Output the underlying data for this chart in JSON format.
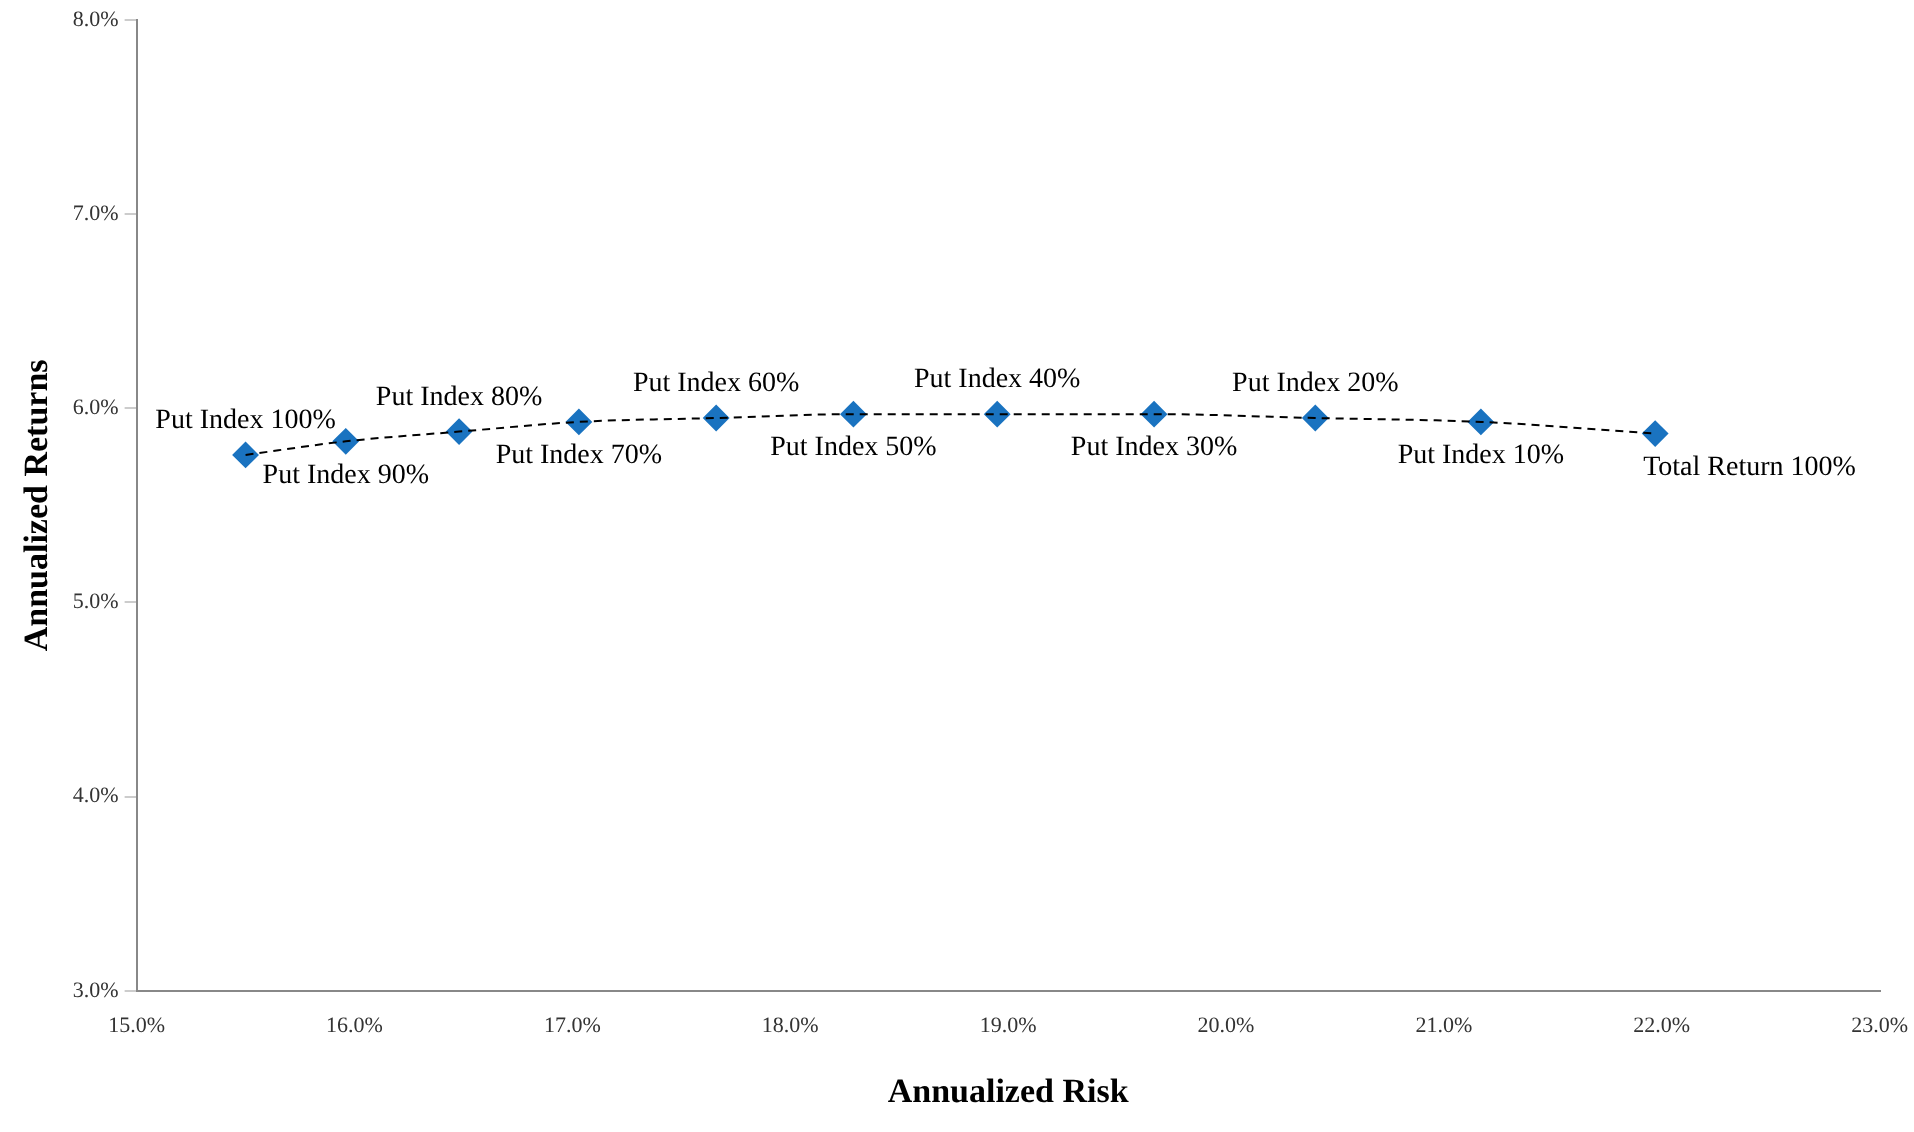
{
  "chart_data": {
    "type": "scatter",
    "xlabel": "Annualized Risk",
    "ylabel": "Annualized Returns",
    "x": [
      15.5,
      15.96,
      16.48,
      17.03,
      17.66,
      18.29,
      18.95,
      19.67,
      20.41,
      21.17,
      21.97
    ],
    "series": [
      {
        "type": "line",
        "color": "#000000",
        "line_style": "dashed",
        "marker": "none",
        "values": [
          5.76,
          5.83,
          5.88,
          5.93,
          5.95,
          5.97,
          5.97,
          5.97,
          5.95,
          5.93,
          5.87
        ]
      },
      {
        "type": "scatter",
        "color": "#1a73c0",
        "marker": "diamond",
        "values": [
          5.76,
          5.83,
          5.88,
          5.93,
          5.95,
          5.97,
          5.97,
          5.97,
          5.95,
          5.93,
          5.87
        ]
      }
    ],
    "xlim": [
      15,
      23
    ],
    "ylim": [
      3,
      8
    ],
    "xticks": [
      {
        "value": 15,
        "label": "15.0%"
      },
      {
        "value": 16,
        "label": "16.0%"
      },
      {
        "value": 17,
        "label": "17.0%"
      },
      {
        "value": 18,
        "label": "18.0%"
      },
      {
        "value": 19,
        "label": "19.0%"
      },
      {
        "value": 20,
        "label": "20.0%"
      },
      {
        "value": 21,
        "label": "21.0%"
      },
      {
        "value": 22,
        "label": "22.0%"
      },
      {
        "value": 23,
        "label": "23.0%"
      }
    ],
    "yticks": [
      {
        "value": 3,
        "label": "3.0%"
      },
      {
        "value": 4,
        "label": "4.0%"
      },
      {
        "value": 5,
        "label": "5.0%"
      },
      {
        "value": 6,
        "label": "6.0%"
      },
      {
        "value": 7,
        "label": "7.0%"
      },
      {
        "value": 8,
        "label": "8.0%"
      }
    ],
    "grid": false,
    "legend": false,
    "annotations": [
      {
        "text": "Put Index 100%",
        "x": 15.5,
        "y": 5.76
      },
      {
        "text": "Put Index 90%",
        "x": 15.96,
        "y": 5.83
      },
      {
        "text": "Put Index 80%",
        "x": 16.48,
        "y": 5.88
      },
      {
        "text": "Put Index 70%",
        "x": 17.03,
        "y": 5.93
      },
      {
        "text": "Put Index 60%",
        "x": 17.66,
        "y": 5.95
      },
      {
        "text": "Put Index 50%",
        "x": 18.29,
        "y": 5.97
      },
      {
        "text": "Put Index 40%",
        "x": 18.95,
        "y": 5.97
      },
      {
        "text": "Put Index 30%",
        "x": 19.67,
        "y": 5.97
      },
      {
        "text": "Put Index 20%",
        "x": 20.41,
        "y": 5.95
      },
      {
        "text": "Put Index 10%",
        "x": 21.17,
        "y": 5.93
      },
      {
        "text": "Total Return 100%",
        "x": 21.97,
        "y": 5.87
      }
    ]
  }
}
